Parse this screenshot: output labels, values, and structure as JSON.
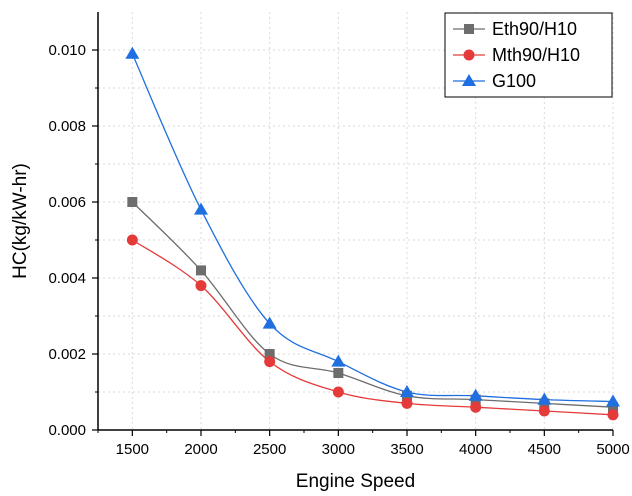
{
  "chart_data": {
    "type": "line",
    "title": "",
    "xlabel": "Engine Speed",
    "ylabel": "HC(kg/kW-hr)",
    "x": [
      1500,
      2000,
      2500,
      3000,
      3500,
      4000,
      4500,
      5000
    ],
    "x_ticks": [
      "1500",
      "2000",
      "2500",
      "3000",
      "3500",
      "4000",
      "4500",
      "5000"
    ],
    "xlim": [
      1250,
      5000
    ],
    "y_ticks": [
      "0.000",
      "0.002",
      "0.004",
      "0.006",
      "0.008",
      "0.010"
    ],
    "ylim": [
      0,
      0.011
    ],
    "grid": true,
    "legend_position": "top-right",
    "series": [
      {
        "name": "Eth90/H10",
        "color": "#6d6d6d",
        "marker": "square",
        "values": [
          0.006,
          0.0042,
          0.002,
          0.0015,
          0.0009,
          0.0008,
          0.0007,
          0.0006
        ]
      },
      {
        "name": "Mth90/H10",
        "color": "#e53a3a",
        "marker": "circle",
        "values": [
          0.005,
          0.0038,
          0.0018,
          0.001,
          0.0007,
          0.0006,
          0.0005,
          0.0004
        ]
      },
      {
        "name": "G100",
        "color": "#1f6fe0",
        "marker": "triangle",
        "values": [
          0.0099,
          0.0058,
          0.0028,
          0.0018,
          0.001,
          0.0009,
          0.0008,
          0.00075
        ]
      }
    ]
  }
}
